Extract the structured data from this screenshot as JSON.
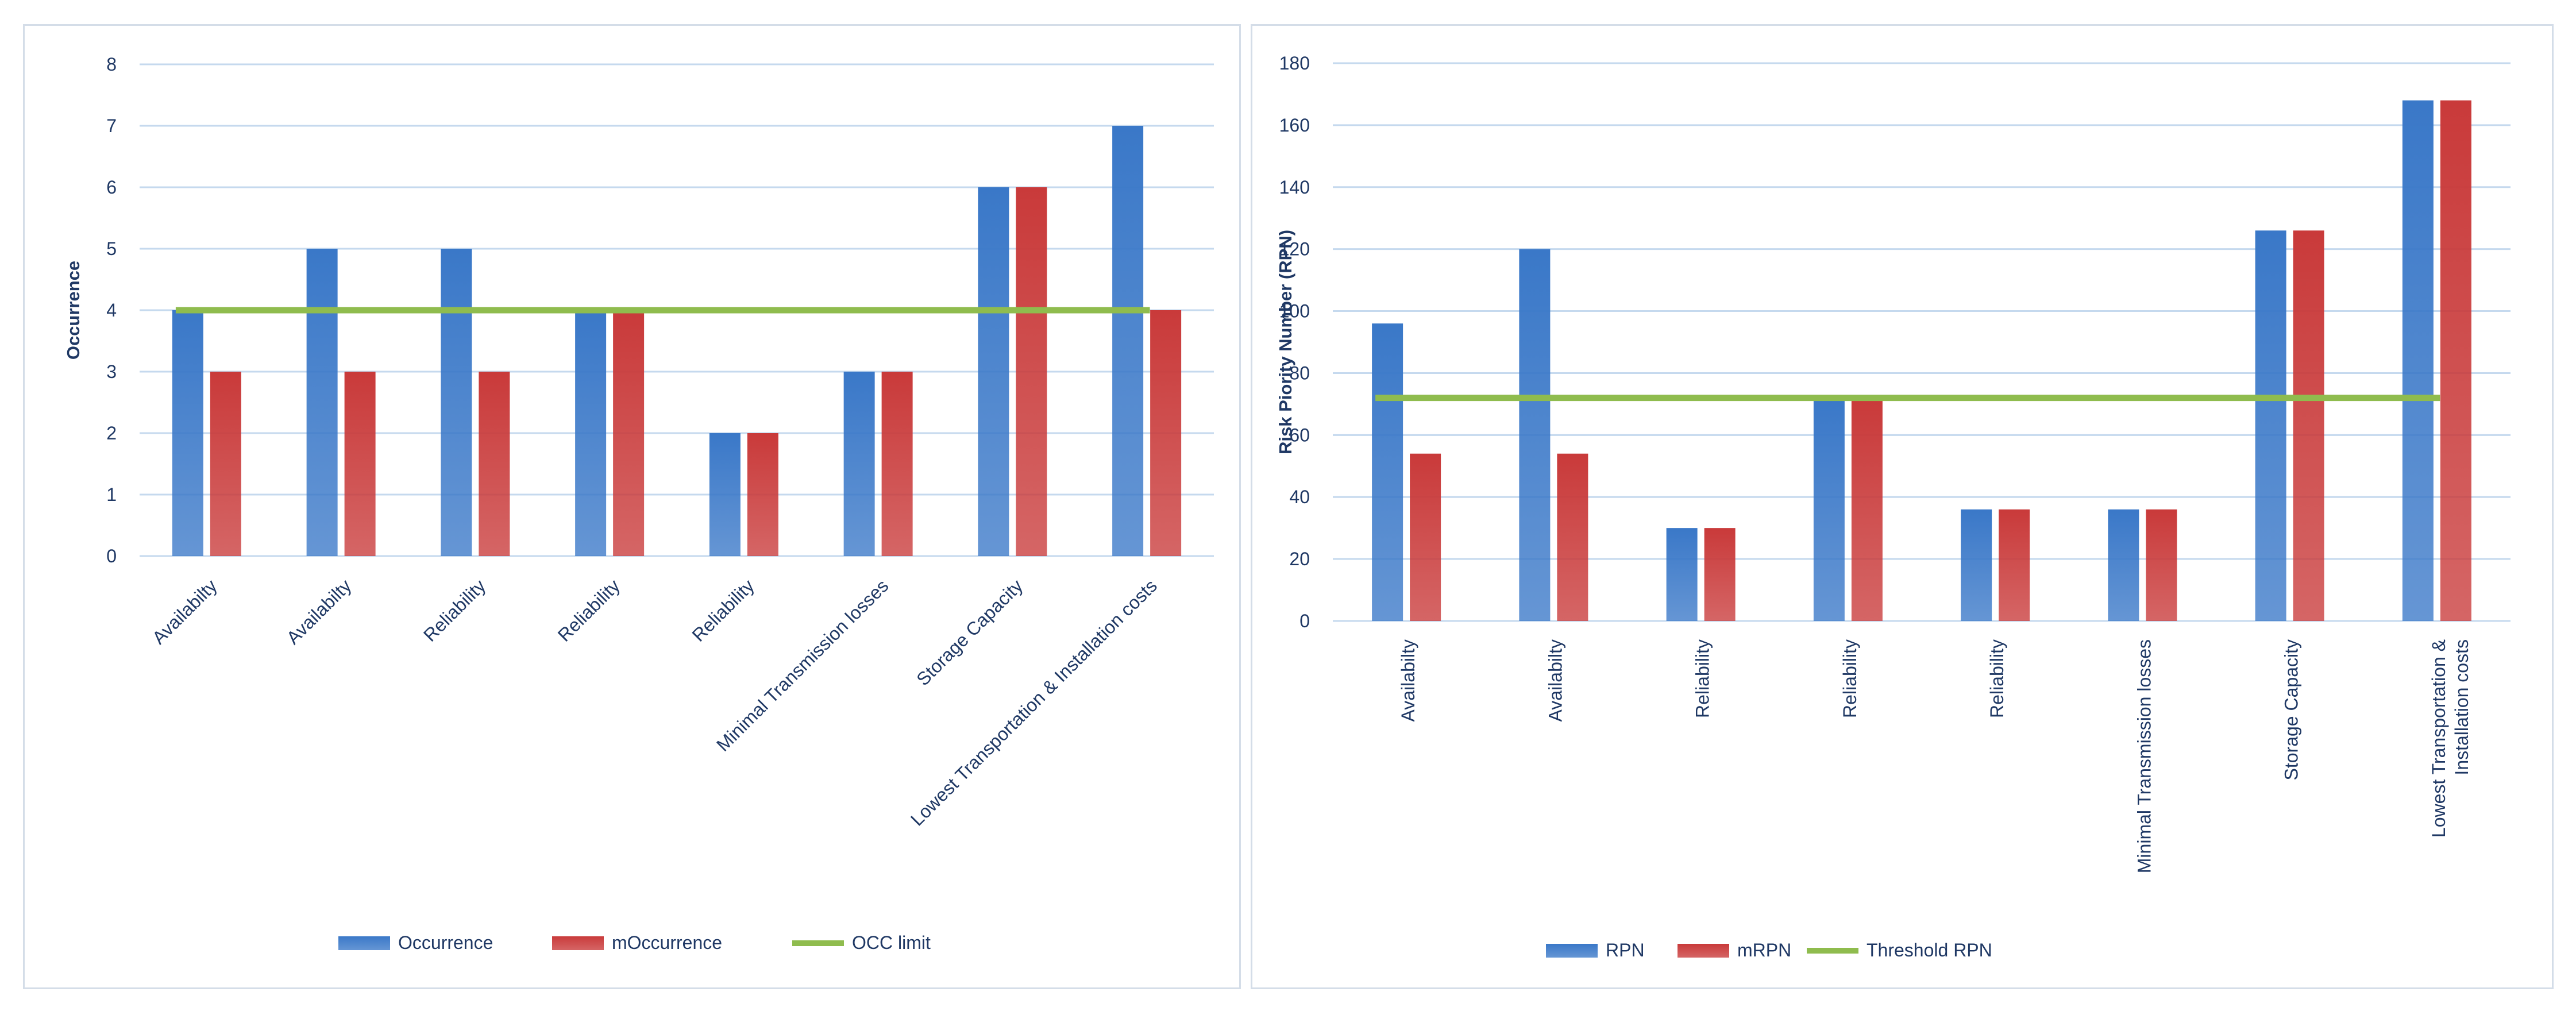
{
  "colors": {
    "primary": "#3a78c8",
    "secondary": "#c93a3a",
    "threshold": "#8fbc4e",
    "grid": "#c5d9ee",
    "text": "#1f3864"
  },
  "chart_data": [
    {
      "type": "bar",
      "title": "",
      "xlabel": "",
      "ylabel": "Occurrence",
      "ylim": [
        0,
        8
      ],
      "yticks": [
        0,
        1,
        2,
        3,
        4,
        5,
        6,
        7,
        8
      ],
      "grid": true,
      "legend_position": "bottom",
      "categories": [
        "Availabilty",
        "Availabilty",
        "Reliability",
        "Reliability",
        "Reliability",
        "Minimal Transmission losses",
        "Storage Capacity",
        "Lowest Transportation & Installation costs"
      ],
      "series": [
        {
          "name": "Occurrence",
          "values": [
            4,
            5,
            5,
            4,
            2,
            3,
            6,
            7
          ]
        },
        {
          "name": "mOccurrence",
          "values": [
            3,
            3,
            3,
            4,
            2,
            3,
            6,
            4
          ]
        }
      ],
      "threshold": {
        "name": "OCC limit",
        "value": 4
      }
    },
    {
      "type": "bar",
      "title": "",
      "xlabel": "",
      "ylabel": "Risk Piority Number (RPN)",
      "ylim": [
        0,
        180
      ],
      "yticks": [
        0,
        20,
        40,
        60,
        80,
        100,
        120,
        140,
        160,
        180
      ],
      "grid": true,
      "legend_position": "bottom",
      "categories": [
        "Availabilty",
        "Availabilty",
        "Reliability",
        "Reliability",
        "Reliability",
        "Minimal Transmission losses",
        "Storage Capacity",
        "Lowest Transportation & Installation costs"
      ],
      "series": [
        {
          "name": "RPN",
          "values": [
            96,
            120,
            30,
            72,
            36,
            36,
            126,
            168
          ]
        },
        {
          "name": "mRPN",
          "values": [
            54,
            54,
            30,
            72,
            36,
            36,
            126,
            168
          ]
        }
      ],
      "threshold": {
        "name": "Threshold RPN",
        "value": 72
      }
    }
  ]
}
